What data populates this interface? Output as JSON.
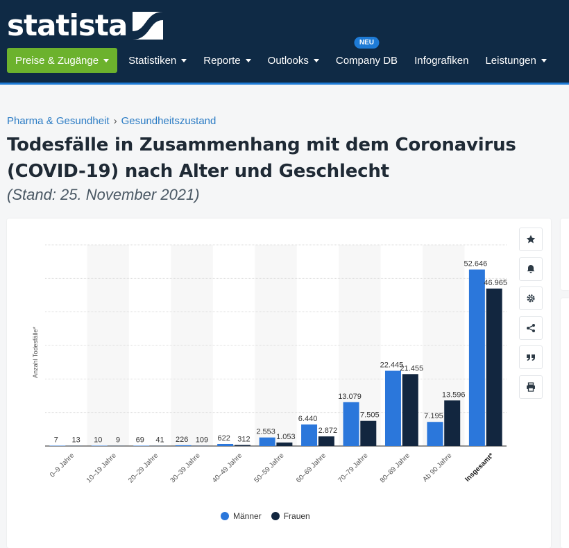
{
  "header": {
    "logo_text": "statista",
    "nav": [
      {
        "label": "Preise & Zugänge",
        "caret": true,
        "primary": true
      },
      {
        "label": "Statistiken",
        "caret": true
      },
      {
        "label": "Reporte",
        "caret": true
      },
      {
        "label": "Outlooks",
        "caret": true
      },
      {
        "label": "Company DB",
        "caret": false,
        "badge": "NEU"
      },
      {
        "label": "Infografiken",
        "caret": false
      },
      {
        "label": "Leistungen",
        "caret": true
      }
    ]
  },
  "breadcrumb": {
    "item1": "Pharma & Gesundheit",
    "separator": "›",
    "item2": "Gesundheitszustand"
  },
  "page": {
    "title": "Todesfälle in Zusammenhang mit dem Coronavirus (COVID-19) nach Alter und Geschlecht",
    "subtitle": "(Stand: 25. November 2021)"
  },
  "tools": [
    "star-icon",
    "bell-icon",
    "gear-icon",
    "share-icon",
    "quote-icon",
    "print-icon"
  ],
  "colors": {
    "maenner": "#2b77db",
    "frauen": "#12263f",
    "band": "#f7f7f7",
    "grid": "#dddddd"
  },
  "chart_data": {
    "type": "bar",
    "categories": [
      "0–9 Jahre",
      "10–19 Jahre",
      "20–29 Jahre",
      "30–39 Jahre",
      "40–49 Jahre",
      "50–59 Jahre",
      "60–69 Jahre",
      "70–79 Jahre",
      "80–89 Jahre",
      "Ab 90 Jahre",
      "Insgesamt*"
    ],
    "series": [
      {
        "name": "Männer",
        "values": [
          7,
          10,
          69,
          226,
          622,
          2553,
          6440,
          13079,
          22445,
          7195,
          52646
        ],
        "labels": [
          "7",
          "10",
          "69",
          "226",
          "622",
          "2.553",
          "6.440",
          "13.079",
          "22.445",
          "7.195",
          "52.646"
        ]
      },
      {
        "name": "Frauen",
        "values": [
          13,
          9,
          41,
          109,
          312,
          1053,
          2872,
          7505,
          21455,
          13596,
          46965
        ],
        "labels": [
          "13",
          "9",
          "41",
          "109",
          "312",
          "1.053",
          "2.872",
          "7.505",
          "21.455",
          "13.596",
          "46.965"
        ]
      }
    ],
    "ylabel": "Anzahl Todesfälle*",
    "ylim": [
      0,
      60000
    ],
    "ytick_step": 10000,
    "grid": true,
    "legend": "bottom-center",
    "bold_categories": [
      "Insgesamt*"
    ]
  }
}
